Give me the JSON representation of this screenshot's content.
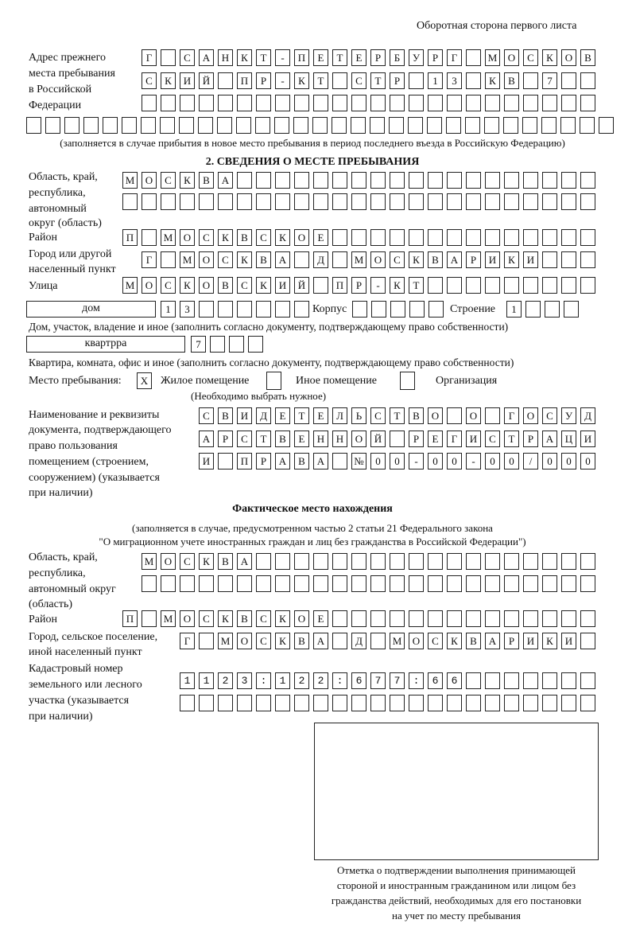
{
  "header": "Оборотная сторона первого листа",
  "previous_address": {
    "label": [
      "Адрес прежнего",
      "места пребывания",
      "в Российской",
      "Федерации"
    ],
    "rows": [
      "Г САНКТ-ПЕТЕРБУРГ МОСКОВ",
      "СКИЙ ПР-КТ СТР 13 КВ 7",
      "",
      ""
    ],
    "note": "(заполняется в случае прибытия в новое место пребывания в период последнего въезда в Российскую Федерацию)"
  },
  "section2": {
    "title": "2. СВЕДЕНИЯ О МЕСТЕ ПРЕБЫВАНИЯ",
    "region_label": [
      "Область, край,",
      "республика,",
      "автономный",
      "округ (область)"
    ],
    "region_rows": [
      "МОСКВА",
      ""
    ],
    "district_label": "Район",
    "district": "П МОСКВСКОЕ",
    "city_label": [
      "Город или другой",
      "населенный пункт"
    ],
    "city": "Г МОСКВА Д МОСКВАРИКИ",
    "street_label": "Улица",
    "street": "МОСКОВСКИЙ ПР-КТ",
    "house_type": "дом",
    "house": "13",
    "korpus_label": "Корпус",
    "korpus": "",
    "building_label": "Строение",
    "building": "1",
    "house_note": "Дом, участок, владение и иное (заполнить согласно документу, подтверждающему право собственности)",
    "flat_type": "квартрра",
    "flat": "7",
    "flat_note": "Квартира, комната, офис и иное (заполнить согласно документу, подтверждающему право собственности)",
    "stay_label": "Место пребывания:",
    "stay_options": [
      {
        "label": "Жилое помещение",
        "mark": "X"
      },
      {
        "label": "Иное помещение",
        "mark": ""
      },
      {
        "label": "Организация",
        "mark": ""
      }
    ],
    "stay_note": "(Необходимо выбрать нужное)",
    "doc_label": [
      "Наименование и реквизиты",
      "документа, подтверждающего",
      "право пользования",
      "помещением (строением,",
      "сооружением) (указывается",
      "при наличии)"
    ],
    "doc_rows": [
      "СВИДЕТЕЛЬСТВО О ГОСУД",
      "АРСТВЕННОЙ РЕГИСТРАЦИ",
      "И ПРАВА №00-00-00/000"
    ]
  },
  "actual": {
    "title": "Фактическое место нахождения",
    "note": [
      "(заполняется в случае, предусмотренном частью 2 статьи 21 Федерального закона",
      "\"О миграционном учете иностранных граждан и лиц без гражданства в Российской Федерации\")"
    ],
    "region_label": [
      "Область, край,",
      "республика,",
      "автономный округ",
      "(область)"
    ],
    "region_rows": [
      "МОСКВА",
      ""
    ],
    "district_label": "Район",
    "district": "П МОСКВСКОЕ",
    "city_label": [
      "Город, сельское поселение,",
      "иной населенный пункт"
    ],
    "city": "Г МОСКВА Д МОСКВАРИКИ",
    "cadastral_label": [
      "Кадастровый номер",
      "земельного или лесного",
      "участка (указывается",
      "при наличии)"
    ],
    "cadastral_rows": [
      "1123:122:677:66",
      ""
    ]
  },
  "stamp_caption": [
    "Отметка о подтверждении выполнения принимающей",
    "стороной и иностранным гражданином или лицом без",
    "гражданства действий, необходимых для его постановки",
    "на учет по месту пребывания"
  ]
}
